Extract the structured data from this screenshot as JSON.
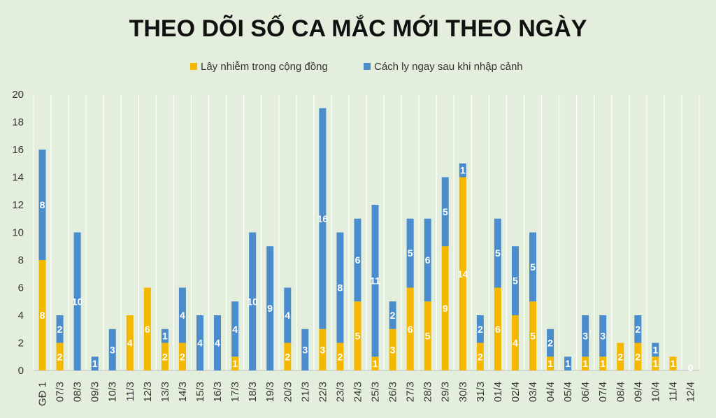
{
  "chart_data": {
    "type": "bar",
    "stacked": true,
    "title": "THEO DÕI SỐ CA MẮC MỚI THEO NGÀY",
    "legend_position": "top",
    "grid": "vertical",
    "ylim": [
      0,
      20
    ],
    "yticks": [
      0,
      2,
      4,
      6,
      8,
      10,
      12,
      14,
      16,
      18,
      20
    ],
    "categories": [
      "GĐ 1",
      "07/3",
      "08/3",
      "09/3",
      "10/3",
      "11/3",
      "12/3",
      "13/3",
      "14/3",
      "15/3",
      "16/3",
      "17/3",
      "18/3",
      "19/3",
      "20/3",
      "21/3",
      "22/3",
      "23/3",
      "24/3",
      "25/3",
      "26/3",
      "27/3",
      "28/3",
      "29/3",
      "30/3",
      "31/3",
      "01/4",
      "02/4",
      "03/4",
      "04/4",
      "05/4",
      "06/4",
      "07/4",
      "08/4",
      "09/4",
      "10/4",
      "11/4",
      "12/4"
    ],
    "series": [
      {
        "name": "Lây nhiễm trong cộng đồng",
        "color": "#f5b800",
        "values": [
          8,
          2,
          0,
          0,
          0,
          4,
          6,
          2,
          2,
          0,
          0,
          1,
          0,
          0,
          2,
          0,
          3,
          2,
          5,
          1,
          3,
          6,
          5,
          9,
          14,
          2,
          6,
          4,
          5,
          1,
          0,
          1,
          1,
          2,
          2,
          1,
          1,
          0
        ]
      },
      {
        "name": "Cách ly ngay sau khi nhập cảnh",
        "color": "#4a8ccc",
        "values": [
          8,
          2,
          10,
          1,
          3,
          0,
          0,
          1,
          4,
          4,
          4,
          4,
          10,
          9,
          4,
          3,
          16,
          8,
          6,
          11,
          2,
          5,
          6,
          5,
          1,
          2,
          5,
          5,
          5,
          2,
          1,
          3,
          3,
          0,
          2,
          1,
          0,
          0
        ]
      }
    ],
    "extra_labels": [
      {
        "category": "12/4",
        "text": "0"
      }
    ]
  }
}
